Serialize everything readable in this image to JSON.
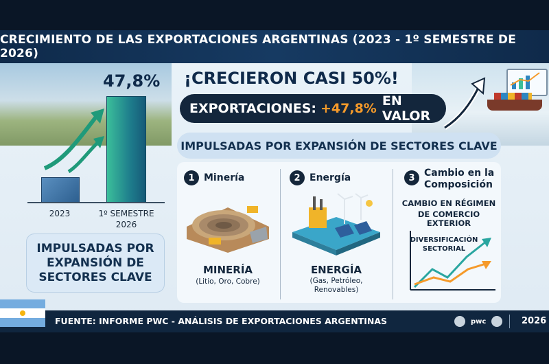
{
  "title": "CRECIMIENTO DE LAS EXPORTACIONES ARGENTINAS (2023 - 1º SEMESTRE DE 2026)",
  "left_chart": {
    "percent_label": "47,8%",
    "bars": [
      {
        "label": "2023",
        "relative_value": 0.23
      },
      {
        "label_line1": "1º SEMESTRE",
        "label_line2": "2026",
        "relative_value": 1.0
      }
    ]
  },
  "left_pill": {
    "line1": "IMPULSADAS POR",
    "line2": "EXPANSIÓN DE",
    "line3": "SECTORES CLAVE"
  },
  "headline": "¡CRECIERON CASI 50%!",
  "exports_box": {
    "prefix": "EXPORTACIONES:",
    "value": "+47,8%",
    "suffix": "EN VALOR"
  },
  "sectors_pill": "IMPULSADAS POR EXPANSIÓN DE SECTORES CLAVE",
  "sectors": [
    {
      "number": "1",
      "title": "Minería",
      "main": "MINERÍA",
      "sub": "(Litio, Oro, Cobre)",
      "icon": "mine-pit-icon"
    },
    {
      "number": "2",
      "title": "Energía",
      "main": "ENERGÍA",
      "sub_line1": "(Gas, Petróleo,",
      "sub_line2": "Renovables)",
      "icon": "energy-plant-icon"
    },
    {
      "number": "3",
      "title_line1": "Cambio en la",
      "title_line2": "Composición",
      "main_line1": "CAMBIO EN RÉGIMEN",
      "main_line2": "DE COMERCIO EXTERIOR",
      "chart_line1": "DIVERSIFICACIÓN",
      "chart_line2": "SECTORIAL",
      "icon": "trend-chart-icon"
    }
  ],
  "footer": {
    "source": "FUENTE: INFORME PWC - ANÁLISIS DE EXPORTACIONES ARGENTINAS",
    "year": "2026",
    "logo_text": "pwc"
  },
  "colors": {
    "navy": "#13263c",
    "orange_accent": "#f59a2a",
    "teal_bar": "#1e7d8c",
    "blue_bar": "#2d5f8f"
  }
}
